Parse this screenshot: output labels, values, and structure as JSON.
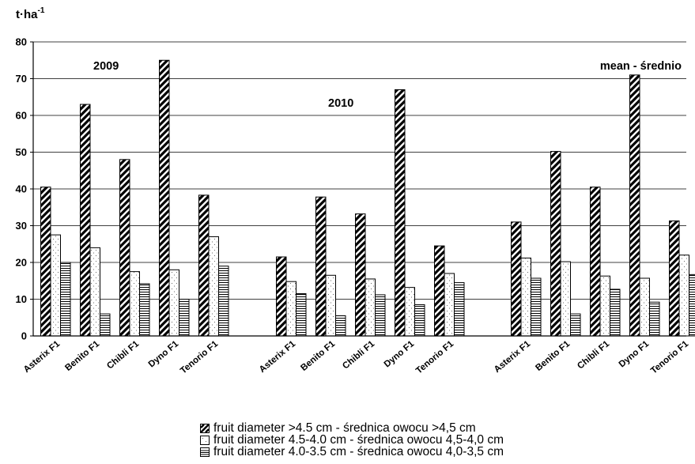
{
  "chart_data": {
    "type": "bar",
    "y_unit": "t·ha",
    "y_unit_sup": "-1",
    "ylim": [
      0,
      80
    ],
    "y_ticks": [
      "0",
      "10",
      "20",
      "30",
      "40",
      "50",
      "60",
      "70",
      "80"
    ],
    "grid": true,
    "legend_position": "bottom",
    "groups": [
      {
        "label": "2009",
        "categories": [
          "Asterix F1",
          "Benito F1",
          "Chibli F1",
          "Dyno F1",
          "Tenorio F1"
        ],
        "series": [
          {
            "name": "fruit diameter >4.5 cm - średnica owocu >4,5 cm",
            "values": [
              40.5,
              63,
              48,
              75,
              38.3
            ]
          },
          {
            "name": "fruit diameter 4.5-4.0 cm - średnica owocu 4,5-4,0 cm",
            "values": [
              27.5,
              24,
              17.5,
              18,
              27
            ]
          },
          {
            "name": "fruit diameter 4.0-3.5 cm - średnica owocu 4,0-3,5 cm",
            "values": [
              20,
              6,
              14.2,
              10,
              19
            ]
          }
        ]
      },
      {
        "label": "2010",
        "categories": [
          "Asterix F1",
          "Benito F1",
          "Chibli F1",
          "Dyno F1",
          "Tenorio F1"
        ],
        "series": [
          {
            "name": "fruit diameter >4.5 cm - średnica owocu >4,5 cm",
            "values": [
              21.5,
              37.8,
              33.2,
              67,
              24.5
            ]
          },
          {
            "name": "fruit diameter 4.5-4.0 cm - średnica owocu 4,5-4,0 cm",
            "values": [
              14.8,
              16.5,
              15.5,
              13.2,
              17
            ]
          },
          {
            "name": "fruit diameter 4.0-3.5 cm - średnica owocu 4,0-3,5 cm",
            "values": [
              11.5,
              5.5,
              11.2,
              8.5,
              14.5
            ]
          }
        ]
      },
      {
        "label": "mean - średnio",
        "categories": [
          "Asterix F1",
          "Benito F1",
          "Chibli F1",
          "Dyno F1",
          "Tenorio F1"
        ],
        "series": [
          {
            "name": "fruit diameter >4.5 cm - średnica owocu >4,5 cm",
            "values": [
              31,
              50.2,
              40.5,
              71,
              31.3
            ]
          },
          {
            "name": "fruit diameter 4.5-4.0 cm - średnica owocu 4,5-4,0 cm",
            "values": [
              21.2,
              20.2,
              16.3,
              15.7,
              22
            ]
          },
          {
            "name": "fruit diameter 4.0-3.5 cm - średnica owocu 4,0-3,5 cm",
            "values": [
              15.7,
              6,
              12.7,
              9.2,
              16.7
            ]
          }
        ]
      }
    ],
    "legend": [
      {
        "label": "fruit diameter >4.5 cm - średnica owocu >4,5 cm",
        "pattern": "diagonal"
      },
      {
        "label": "fruit diameter 4.5-4.0 cm - średnica owocu 4,5-4,0 cm",
        "pattern": "dots"
      },
      {
        "label": "fruit diameter 4.0-3.5 cm - średnica owocu 4,0-3,5 cm",
        "pattern": "horizontal"
      }
    ]
  }
}
